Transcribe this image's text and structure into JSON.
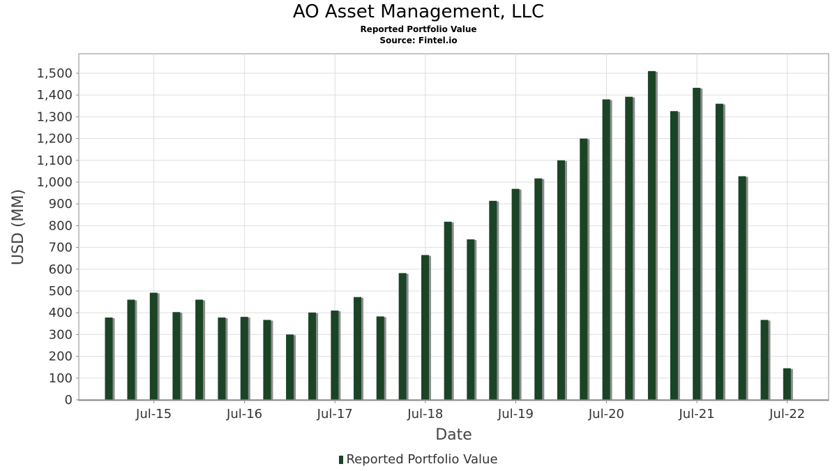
{
  "chart_data": {
    "type": "bar",
    "title": "AO Asset Management, LLC",
    "subtitle": "Reported Portfolio Value",
    "source": "Source: Fintel.io",
    "xlabel": "Date",
    "ylabel": "USD (MM)",
    "ylim": [
      0,
      1580
    ],
    "yticks": [
      0,
      100,
      200,
      300,
      400,
      500,
      600,
      700,
      800,
      900,
      1000,
      1100,
      1200,
      1300,
      1400,
      1500
    ],
    "x_tick_labels": [
      "Jul-15",
      "Jul-16",
      "Jul-17",
      "Jul-18",
      "Jul-19",
      "Jul-20",
      "Jul-21",
      "Jul-22"
    ],
    "x_ticks": [
      "2015-07-01",
      "2016-07-01",
      "2017-07-01",
      "2018-07-01",
      "2019-07-01",
      "2020-07-01",
      "2021-07-01",
      "2022-07-01"
    ],
    "x_range": [
      "2014-09-01",
      "2022-12-15"
    ],
    "grid": true,
    "legend_position": "bottom-center",
    "colors": {
      "bar": "#1a4425",
      "shadow": "#8c8c8c",
      "grid": "#dddddd",
      "frame": "#888888"
    },
    "series": [
      {
        "name": "Reported Portfolio Value",
        "x": [
          "2014-12-31",
          "2015-03-31",
          "2015-06-30",
          "2015-09-30",
          "2015-12-31",
          "2016-03-31",
          "2016-06-30",
          "2016-09-30",
          "2016-12-31",
          "2017-03-31",
          "2017-06-30",
          "2017-09-30",
          "2017-12-31",
          "2018-03-31",
          "2018-06-30",
          "2018-09-30",
          "2018-12-31",
          "2019-03-31",
          "2019-06-30",
          "2019-09-30",
          "2019-12-31",
          "2020-03-31",
          "2020-06-30",
          "2020-09-30",
          "2020-12-31",
          "2021-03-31",
          "2021-06-30",
          "2021-09-30",
          "2021-12-31",
          "2022-03-31",
          "2022-06-30"
        ],
        "values": [
          378,
          460,
          492,
          403,
          460,
          378,
          381,
          367,
          300,
          401,
          410,
          472,
          383,
          582,
          665,
          818,
          737,
          914,
          969,
          1017,
          1100,
          1200,
          1380,
          1392,
          1510,
          1326,
          1433,
          1360,
          1027,
          367,
          145
        ]
      }
    ]
  }
}
